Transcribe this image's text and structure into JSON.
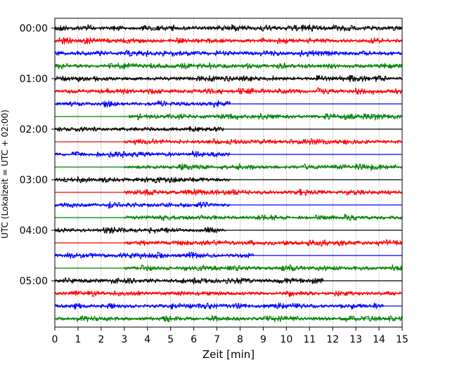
{
  "chart_data": {
    "type": "line",
    "title": "",
    "xlabel": "Zeit  [min]",
    "ylabel": "UTC (Lokalzeit = UTC + 02:00)",
    "xlim": [
      0,
      15
    ],
    "x_ticks": [
      "0",
      "1",
      "2",
      "3",
      "4",
      "5",
      "6",
      "7",
      "8",
      "9",
      "10",
      "11",
      "12",
      "13",
      "14",
      "15"
    ],
    "y_tick_labels": [
      "00:00",
      "01:00",
      "02:00",
      "03:00",
      "04:00",
      "05:00"
    ],
    "grid": "vertical dotted at each minute",
    "row_interval_minutes": 15,
    "color_cycle": [
      "#000000",
      "#ff0000",
      "#0000ff",
      "#008000"
    ],
    "rows": [
      {
        "time": "00:00",
        "color": "#000000",
        "noise_start": 0,
        "noise_end": 15
      },
      {
        "time": "00:15",
        "color": "#ff0000",
        "noise_start": 0,
        "noise_end": 15
      },
      {
        "time": "00:30",
        "color": "#0000ff",
        "noise_start": 0,
        "noise_end": 15
      },
      {
        "time": "00:45",
        "color": "#008000",
        "noise_start": 0,
        "noise_end": 15
      },
      {
        "time": "01:00",
        "color": "#000000",
        "noise_start": 0,
        "noise_end": 15
      },
      {
        "time": "01:15",
        "color": "#ff0000",
        "noise_start": 0,
        "noise_end": 15
      },
      {
        "time": "01:30",
        "color": "#0000ff",
        "noise_start": 0,
        "noise_end": 7.6
      },
      {
        "time": "01:45",
        "color": "#008000",
        "noise_start": 3.2,
        "noise_end": 15
      },
      {
        "time": "02:00",
        "color": "#000000",
        "noise_start": 0,
        "noise_end": 7.3
      },
      {
        "time": "02:15",
        "color": "#ff0000",
        "noise_start": 3.0,
        "noise_end": 15
      },
      {
        "time": "02:30",
        "color": "#0000ff",
        "noise_start": 0,
        "noise_end": 7.6
      },
      {
        "time": "02:45",
        "color": "#008000",
        "noise_start": 3.0,
        "noise_end": 15
      },
      {
        "time": "03:00",
        "color": "#000000",
        "noise_start": 0,
        "noise_end": 7.6
      },
      {
        "time": "03:15",
        "color": "#ff0000",
        "noise_start": 3.0,
        "noise_end": 15
      },
      {
        "time": "03:30",
        "color": "#0000ff",
        "noise_start": 0,
        "noise_end": 7.6
      },
      {
        "time": "03:45",
        "color": "#008000",
        "noise_start": 3.0,
        "noise_end": 15
      },
      {
        "time": "04:00",
        "color": "#000000",
        "noise_start": 0,
        "noise_end": 7.4
      },
      {
        "time": "04:15",
        "color": "#ff0000",
        "noise_start": 3.0,
        "noise_end": 15
      },
      {
        "time": "04:30",
        "color": "#0000ff",
        "noise_start": 0,
        "noise_end": 8.6
      },
      {
        "time": "04:45",
        "color": "#008000",
        "noise_start": 3.0,
        "noise_end": 15
      },
      {
        "time": "05:00",
        "color": "#000000",
        "noise_start": 0,
        "noise_end": 11.6
      },
      {
        "time": "05:15",
        "color": "#ff0000",
        "noise_start": 0,
        "noise_end": 15
      },
      {
        "time": "05:30",
        "color": "#0000ff",
        "noise_start": 0,
        "noise_end": 14.2
      },
      {
        "time": "05:45",
        "color": "#008000",
        "noise_start": 0,
        "noise_end": 15
      }
    ]
  }
}
